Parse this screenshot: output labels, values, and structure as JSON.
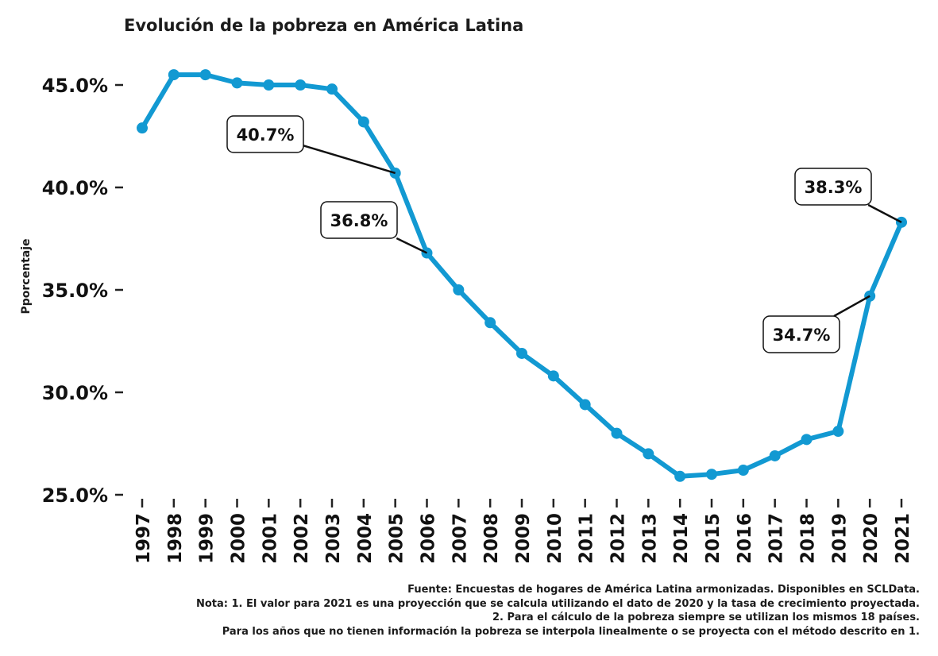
{
  "chart_data": {
    "type": "line",
    "title": "Evolución de la pobreza en América Latina",
    "xlabel": "",
    "ylabel": "Pporcentaje",
    "x": [
      "1997",
      "1998",
      "1999",
      "2000",
      "2001",
      "2002",
      "2003",
      "2004",
      "2005",
      "2006",
      "2007",
      "2008",
      "2009",
      "2010",
      "2011",
      "2012",
      "2013",
      "2014",
      "2015",
      "2016",
      "2017",
      "2018",
      "2019",
      "2020",
      "2021"
    ],
    "series": [
      {
        "values": [
          42.9,
          45.5,
          45.5,
          45.1,
          45.0,
          45.0,
          44.8,
          43.2,
          40.7,
          36.8,
          35.0,
          33.4,
          31.9,
          30.8,
          29.4,
          28.0,
          27.0,
          25.9,
          26.0,
          26.2,
          26.9,
          27.7,
          28.1,
          34.7,
          38.3
        ]
      }
    ],
    "yticks": [
      "25.0%",
      "30.0%",
      "35.0%",
      "40.0%",
      "45.0%"
    ],
    "ylim": [
      25.0,
      45.0
    ],
    "grid": false,
    "line_color": "#1299d2",
    "annotations": [
      {
        "year": "2005",
        "label": "40.7%"
      },
      {
        "year": "2006",
        "label": "36.8%"
      },
      {
        "year": "2020",
        "label": "34.7%"
      },
      {
        "year": "2021",
        "label": "38.3%"
      }
    ]
  },
  "footnotes": [
    "Fuente: Encuestas de hogares de América Latina armonizadas. Disponibles en SCLData.",
    "Nota: 1. El valor para 2021 es una proyección que se calcula utilizando el dato de 2020 y la tasa de crecimiento proyectada.",
    "2. Para el cálculo de la pobreza siempre se utilizan los mismos 18 países.",
    "Para los años que no tienen información la pobreza se interpola linealmente o se proyecta con el método descrito en 1."
  ]
}
